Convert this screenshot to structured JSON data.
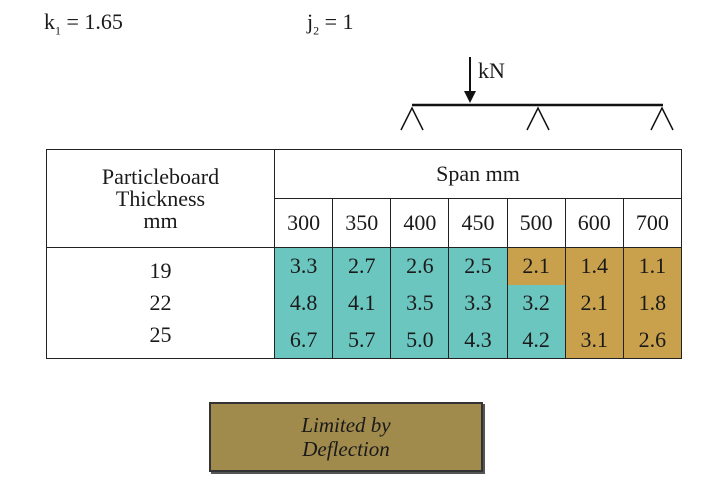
{
  "factors": {
    "k_symbol": "k",
    "k_sub": "1",
    "k_value": " = 1.65",
    "j_symbol": "j",
    "j_sub": "2",
    "j_value": " = 1"
  },
  "load_unit": "kN",
  "table": {
    "header_left": [
      "Particleboard",
      "Thickness",
      "mm"
    ],
    "span_title": "Span mm",
    "spans": [
      "300",
      "350",
      "400",
      "450",
      "500",
      "600",
      "700"
    ],
    "rows": [
      {
        "thickness": "19",
        "values": [
          "3.3",
          "2.7",
          "2.6",
          "2.5",
          "2.1",
          "1.4",
          "1.1"
        ],
        "limited": [
          false,
          false,
          false,
          false,
          true,
          true,
          true
        ]
      },
      {
        "thickness": "22",
        "values": [
          "4.8",
          "4.1",
          "3.5",
          "3.3",
          "3.2",
          "2.1",
          "1.8"
        ],
        "limited": [
          false,
          false,
          false,
          false,
          false,
          true,
          true
        ]
      },
      {
        "thickness": "25",
        "values": [
          "6.7",
          "5.7",
          "5.0",
          "4.3",
          "4.2",
          "3.1",
          "2.6"
        ],
        "limited": [
          false,
          false,
          false,
          false,
          false,
          true,
          true
        ]
      }
    ]
  },
  "colors": {
    "not_limited": "#6cc6c0",
    "limited": "#c9a14d",
    "legend": "#a08a4c"
  },
  "legend": {
    "line1": "Limited by",
    "line2": "Deflection"
  }
}
